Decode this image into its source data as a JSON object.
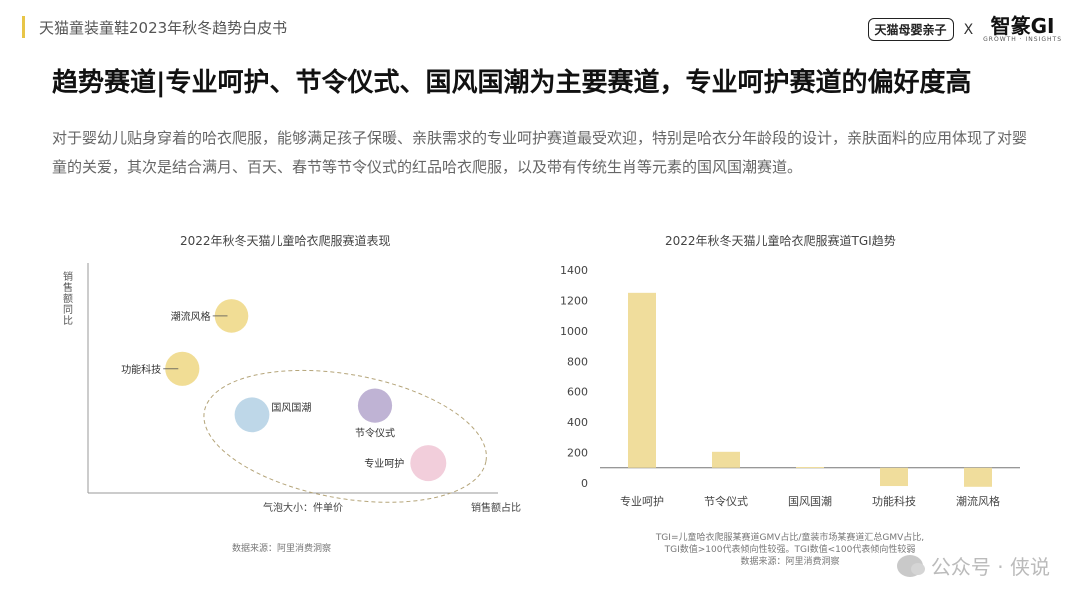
{
  "header": {
    "report_title": "天猫童装童鞋2023年秋冬趋势白皮书",
    "logo_left": "天猫母婴亲子",
    "logo_x": "X",
    "logo_right": "智篆GI",
    "logo_right_sub": "GROWTH · INSIGHTS"
  },
  "title": "趋势赛道|专业呵护、节令仪式、国风国潮为主要赛道，专业呵护赛道的偏好度高",
  "description": "对于婴幼儿贴身穿着的哈衣爬服，能够满足孩子保暖、亲肤需求的专业呵护赛道最受欢迎，特别是哈衣分年龄段的设计，亲肤面料的应用体现了对婴童的关爱，其次是结合满月、百天、春节等节令仪式的红品哈衣爬服，以及带有传统生肖等元素的国风国潮赛道。",
  "colors": {
    "yellow": "#f0d98a",
    "blue": "#b7d3e6",
    "purple": "#b8abcf",
    "pink": "#f1c9d7",
    "bar": "#f0dd9c",
    "axis": "#999999"
  },
  "chart_data": [
    {
      "type": "scatter",
      "title": "2022年秋冬天猫儿童哈衣爬服赛道表现",
      "xlabel": "销售额占比",
      "ylabel": "销售额同比",
      "size_label": "气泡大小：件单价",
      "source": "数据来源：阿里消费洞察",
      "points": [
        {
          "label": "潮流风格",
          "color": "yellow",
          "x": 0.35,
          "y": 0.77,
          "size": 0.8
        },
        {
          "label": "功能科技",
          "color": "yellow",
          "x": 0.23,
          "y": 0.54,
          "size": 0.85
        },
        {
          "label": "国风国潮",
          "color": "blue",
          "x": 0.4,
          "y": 0.34,
          "size": 0.9
        },
        {
          "label": "节令仪式",
          "color": "purple",
          "x": 0.7,
          "y": 0.38,
          "size": 0.85
        },
        {
          "label": "专业呵护",
          "color": "pink",
          "x": 0.83,
          "y": 0.13,
          "size": 1.0
        }
      ]
    },
    {
      "type": "bar",
      "title": "2022年秋冬天猫儿童哈衣爬服赛道TGI趋势",
      "categories": [
        "专业呵护",
        "节令仪式",
        "国风国潮",
        "功能科技",
        "潮流风格"
      ],
      "values": [
        1250,
        205,
        105,
        -20,
        -25
      ],
      "baseline": 100,
      "ylim": [
        0,
        1400
      ],
      "yticks": [
        0,
        200,
        400,
        600,
        800,
        1000,
        1200,
        1400
      ],
      "notes": [
        "TGI=儿童哈衣爬服某赛道GMV占比/童装市场某赛道汇总GMV占比,",
        "TGI数值>100代表倾向性较强。TGI数值<100代表倾向性较弱",
        "数据来源：阿里消费洞察"
      ]
    }
  ],
  "watermark": "公众号 · 侠说"
}
